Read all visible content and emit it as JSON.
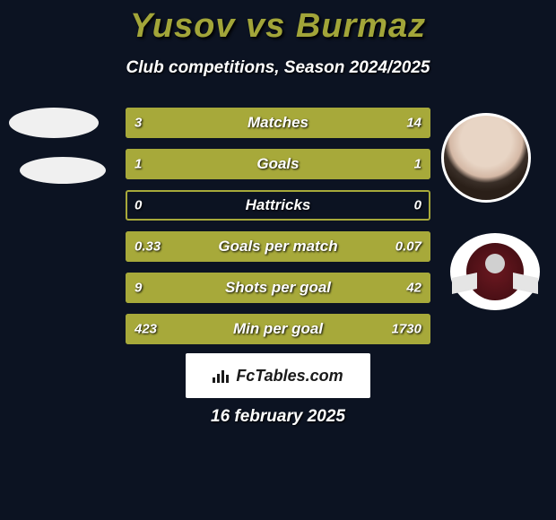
{
  "title": "Yusov vs Burmaz",
  "subtitle": "Club competitions, Season 2024/2025",
  "colors": {
    "background": "#0c1322",
    "left_bar": "#a7a93a",
    "right_bar": "#a7a93a",
    "border": "#a7a93a",
    "title_color": "#a2a539",
    "text_color": "#ffffff"
  },
  "stats": [
    {
      "label": "Matches",
      "left_value": "3",
      "right_value": "14",
      "left_pct": 17.6,
      "right_pct": 82.4
    },
    {
      "label": "Goals",
      "left_value": "1",
      "right_value": "1",
      "left_pct": 50.0,
      "right_pct": 50.0
    },
    {
      "label": "Hattricks",
      "left_value": "0",
      "right_value": "0",
      "left_pct": 0.0,
      "right_pct": 0.0
    },
    {
      "label": "Goals per match",
      "left_value": "0.33",
      "right_value": "0.07",
      "left_pct": 82.5,
      "right_pct": 17.5
    },
    {
      "label": "Shots per goal",
      "left_value": "9",
      "right_value": "42",
      "left_pct": 17.6,
      "right_pct": 82.4
    },
    {
      "label": "Min per goal",
      "left_value": "423",
      "right_value": "1730",
      "left_pct": 19.6,
      "right_pct": 80.4
    }
  ],
  "footer_brand": "FcTables.com",
  "footer_date": "16 february 2025"
}
